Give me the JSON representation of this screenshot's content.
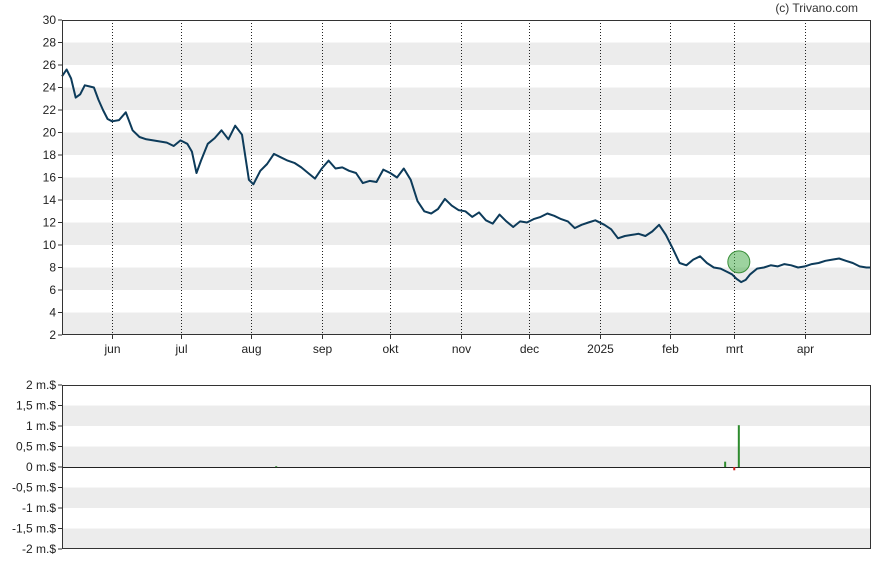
{
  "credit": "(c) Trivano.com",
  "colors": {
    "line": "#0d3b5a",
    "band": "#ececec",
    "marker": "#4caf50",
    "vol_up": "#2e8b2e",
    "vol_down": "#cc2222"
  },
  "chart_data": [
    {
      "type": "line",
      "title": "",
      "ylim": [
        2,
        30
      ],
      "yticks": [
        2,
        4,
        6,
        8,
        10,
        12,
        14,
        16,
        18,
        20,
        22,
        24,
        26,
        28,
        30
      ],
      "ytick_labels": [
        "2",
        "4",
        "6",
        "8",
        "10",
        "12",
        "14",
        "16",
        "18",
        "20",
        "22",
        "24",
        "26",
        "28",
        "30"
      ],
      "x_start": "2024-05-10",
      "x_end": "2025-04-30",
      "xticks": [
        {
          "date": "2024-06-01",
          "label": "jun"
        },
        {
          "date": "2024-07-01",
          "label": "jul"
        },
        {
          "date": "2024-08-01",
          "label": "aug"
        },
        {
          "date": "2024-09-01",
          "label": "sep"
        },
        {
          "date": "2024-10-01",
          "label": "okt"
        },
        {
          "date": "2024-11-01",
          "label": "nov"
        },
        {
          "date": "2024-12-01",
          "label": "dec"
        },
        {
          "date": "2025-01-01",
          "label": "2025"
        },
        {
          "date": "2025-02-01",
          "label": "feb"
        },
        {
          "date": "2025-03-01",
          "label": "mrt"
        },
        {
          "date": "2025-04-01",
          "label": "apr"
        }
      ],
      "grid": true,
      "marker": {
        "x": "2025-03-03",
        "y": 8.5
      },
      "series": [
        {
          "x": [
            "2024-05-10",
            "2024-05-12",
            "2024-05-14",
            "2024-05-16",
            "2024-05-18",
            "2024-05-20",
            "2024-05-22",
            "2024-05-24",
            "2024-05-26",
            "2024-05-28",
            "2024-05-30",
            "2024-06-01",
            "2024-06-04",
            "2024-06-07",
            "2024-06-10",
            "2024-06-13",
            "2024-06-16",
            "2024-06-19",
            "2024-06-22",
            "2024-06-25",
            "2024-06-28",
            "2024-07-01",
            "2024-07-04",
            "2024-07-06",
            "2024-07-08",
            "2024-07-10",
            "2024-07-13",
            "2024-07-16",
            "2024-07-19",
            "2024-07-22",
            "2024-07-25",
            "2024-07-28",
            "2024-07-31",
            "2024-08-02",
            "2024-08-05",
            "2024-08-08",
            "2024-08-11",
            "2024-08-14",
            "2024-08-17",
            "2024-08-20",
            "2024-08-23",
            "2024-08-26",
            "2024-08-29",
            "2024-09-01",
            "2024-09-04",
            "2024-09-07",
            "2024-09-10",
            "2024-09-13",
            "2024-09-16",
            "2024-09-19",
            "2024-09-22",
            "2024-09-25",
            "2024-09-28",
            "2024-10-01",
            "2024-10-04",
            "2024-10-07",
            "2024-10-10",
            "2024-10-13",
            "2024-10-16",
            "2024-10-19",
            "2024-10-22",
            "2024-10-25",
            "2024-10-28",
            "2024-10-31",
            "2024-11-03",
            "2024-11-06",
            "2024-11-09",
            "2024-11-12",
            "2024-11-15",
            "2024-11-18",
            "2024-11-21",
            "2024-11-24",
            "2024-11-27",
            "2024-11-30",
            "2024-12-03",
            "2024-12-06",
            "2024-12-09",
            "2024-12-12",
            "2024-12-15",
            "2024-12-18",
            "2024-12-21",
            "2024-12-24",
            "2024-12-27",
            "2024-12-30",
            "2025-01-03",
            "2025-01-06",
            "2025-01-09",
            "2025-01-12",
            "2025-01-15",
            "2025-01-18",
            "2025-01-21",
            "2025-01-24",
            "2025-01-27",
            "2025-01-30",
            "2025-02-02",
            "2025-02-05",
            "2025-02-08",
            "2025-02-11",
            "2025-02-14",
            "2025-02-17",
            "2025-02-20",
            "2025-02-23",
            "2025-02-26",
            "2025-02-28",
            "2025-03-02",
            "2025-03-04",
            "2025-03-06",
            "2025-03-08",
            "2025-03-11",
            "2025-03-14",
            "2025-03-17",
            "2025-03-20",
            "2025-03-23",
            "2025-03-26",
            "2025-03-29",
            "2025-04-01",
            "2025-04-04",
            "2025-04-07",
            "2025-04-10",
            "2025-04-13",
            "2025-04-16",
            "2025-04-19",
            "2025-04-22",
            "2025-04-25",
            "2025-04-28",
            "2025-04-30"
          ],
          "y": [
            25.0,
            25.6,
            24.8,
            23.1,
            23.4,
            24.2,
            24.1,
            24.0,
            22.9,
            22.0,
            21.2,
            21.0,
            21.1,
            21.8,
            20.2,
            19.6,
            19.4,
            19.3,
            19.2,
            19.1,
            18.8,
            19.3,
            19.0,
            18.3,
            16.4,
            17.5,
            19.0,
            19.5,
            20.2,
            19.4,
            20.6,
            19.8,
            15.8,
            15.4,
            16.6,
            17.2,
            18.1,
            17.8,
            17.5,
            17.3,
            16.9,
            16.4,
            15.9,
            16.8,
            17.5,
            16.8,
            16.9,
            16.6,
            16.4,
            15.5,
            15.7,
            15.6,
            16.7,
            16.4,
            16.0,
            16.8,
            15.8,
            13.9,
            13.0,
            12.8,
            13.2,
            14.1,
            13.5,
            13.1,
            13.0,
            12.5,
            12.9,
            12.2,
            11.9,
            12.7,
            12.1,
            11.6,
            12.1,
            12.0,
            12.3,
            12.5,
            12.8,
            12.6,
            12.3,
            12.1,
            11.5,
            11.8,
            12.0,
            12.2,
            11.8,
            11.4,
            10.6,
            10.8,
            10.9,
            11.0,
            10.8,
            11.2,
            11.8,
            10.9,
            9.7,
            8.4,
            8.2,
            8.7,
            9.0,
            8.4,
            8.0,
            7.9,
            7.6,
            7.4,
            7.0,
            6.7,
            6.9,
            7.4,
            7.9,
            8.0,
            8.2,
            8.1,
            8.3,
            8.2,
            8.0,
            8.1,
            8.3,
            8.4,
            8.6,
            8.7,
            8.8,
            8.6,
            8.4,
            8.1,
            8.0,
            8.0
          ]
        }
      ]
    },
    {
      "type": "bar",
      "title": "",
      "ylim": [
        -2,
        2
      ],
      "yticks": [
        -2,
        -1.5,
        -1,
        -0.5,
        0,
        0.5,
        1,
        1.5,
        2
      ],
      "ytick_labels": [
        "-2 m.$",
        "-1,5 m.$",
        "-1 m.$",
        "-0,5 m.$",
        "0 m.$",
        "0,5 m.$",
        "1 m.$",
        "1,5 m.$",
        "2 m.$"
      ],
      "series": [
        {
          "x": [
            "2024-08-12",
            "2025-02-25",
            "2025-03-01",
            "2025-03-03"
          ],
          "values": [
            0.02,
            0.13,
            -0.08,
            1.02
          ]
        }
      ]
    }
  ]
}
